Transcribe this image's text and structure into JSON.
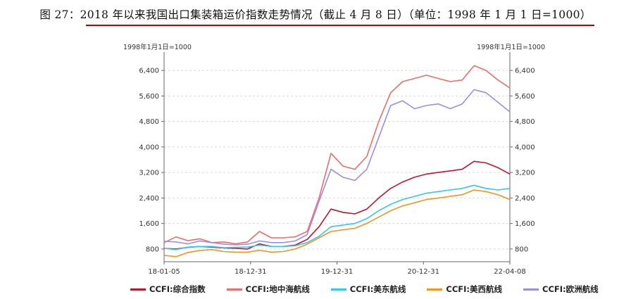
{
  "figure": {
    "title": "图 27：2018 年以来我国出口集装箱运价指数走势情况（截止 4 月 8 日）（单位：1998 年 1 月 1 日=1000）"
  },
  "chart_data": {
    "type": "line",
    "ylabel_left": "1998年1月1日=1000",
    "ylabel_right": "1998年1月1日=1000",
    "ylim": [
      400,
      6800
    ],
    "y_ticks": [
      "800",
      "1,600",
      "2,400",
      "3,200",
      "4,000",
      "4,800",
      "5,600",
      "6,400"
    ],
    "x_ticks": [
      "18-01-05",
      "18-12-31",
      "19-12-31",
      "20-12-31",
      "22-04-08"
    ],
    "x": [
      "2018-01",
      "2018-04",
      "2018-07",
      "2018-10",
      "2019-01",
      "2019-04",
      "2019-07",
      "2019-10",
      "2020-01",
      "2020-04",
      "2020-07",
      "2020-10",
      "2020-11",
      "2020-12",
      "2021-01",
      "2021-02",
      "2021-03",
      "2021-04",
      "2021-05",
      "2021-06",
      "2021-07",
      "2021-08",
      "2021-09",
      "2021-10",
      "2021-11",
      "2021-12",
      "2022-01",
      "2022-02",
      "2022-03",
      "2022-04"
    ],
    "grid": true,
    "legend": "bottom",
    "series": [
      {
        "name": "CCFI:综合指数",
        "color": "#c0142b",
        "values": [
          820,
          800,
          850,
          880,
          860,
          830,
          820,
          800,
          960,
          880,
          880,
          920,
          1100,
          1500,
          2050,
          1950,
          1900,
          2050,
          2400,
          2700,
          2900,
          3050,
          3150,
          3200,
          3250,
          3300,
          3550,
          3500,
          3350,
          3150
        ]
      },
      {
        "name": "CCFI:地中海航线",
        "color": "#f26a6a",
        "values": [
          1000,
          1180,
          1060,
          1120,
          1000,
          1020,
          960,
          1020,
          1350,
          1150,
          1150,
          1180,
          1350,
          2400,
          3800,
          3400,
          3300,
          3700,
          4800,
          5700,
          6050,
          6150,
          6250,
          6150,
          6050,
          6100,
          6550,
          6400,
          6100,
          5850
        ]
      },
      {
        "name": "CCFI:美东航线",
        "color": "#33c8f0",
        "values": [
          820,
          780,
          860,
          880,
          880,
          840,
          850,
          860,
          920,
          880,
          880,
          900,
          1000,
          1200,
          1500,
          1550,
          1600,
          1750,
          2000,
          2200,
          2350,
          2450,
          2550,
          2600,
          2650,
          2700,
          2800,
          2700,
          2650,
          2700
        ]
      },
      {
        "name": "CCFI:美西航线",
        "color": "#f7931e",
        "values": [
          600,
          560,
          690,
          750,
          780,
          720,
          700,
          700,
          760,
          700,
          720,
          800,
          950,
          1150,
          1350,
          1400,
          1450,
          1600,
          1800,
          2000,
          2150,
          2250,
          2350,
          2400,
          2450,
          2500,
          2650,
          2600,
          2500,
          2350
        ]
      },
      {
        "name": "CCFI:欧洲航线",
        "color": "#9b8df0",
        "values": [
          1040,
          1020,
          960,
          1050,
          1000,
          950,
          930,
          950,
          1050,
          1000,
          1000,
          1050,
          1250,
          2300,
          3300,
          3050,
          2950,
          3300,
          4300,
          5300,
          5450,
          5200,
          5300,
          5350,
          5200,
          5350,
          5800,
          5700,
          5400,
          5100
        ]
      }
    ]
  }
}
